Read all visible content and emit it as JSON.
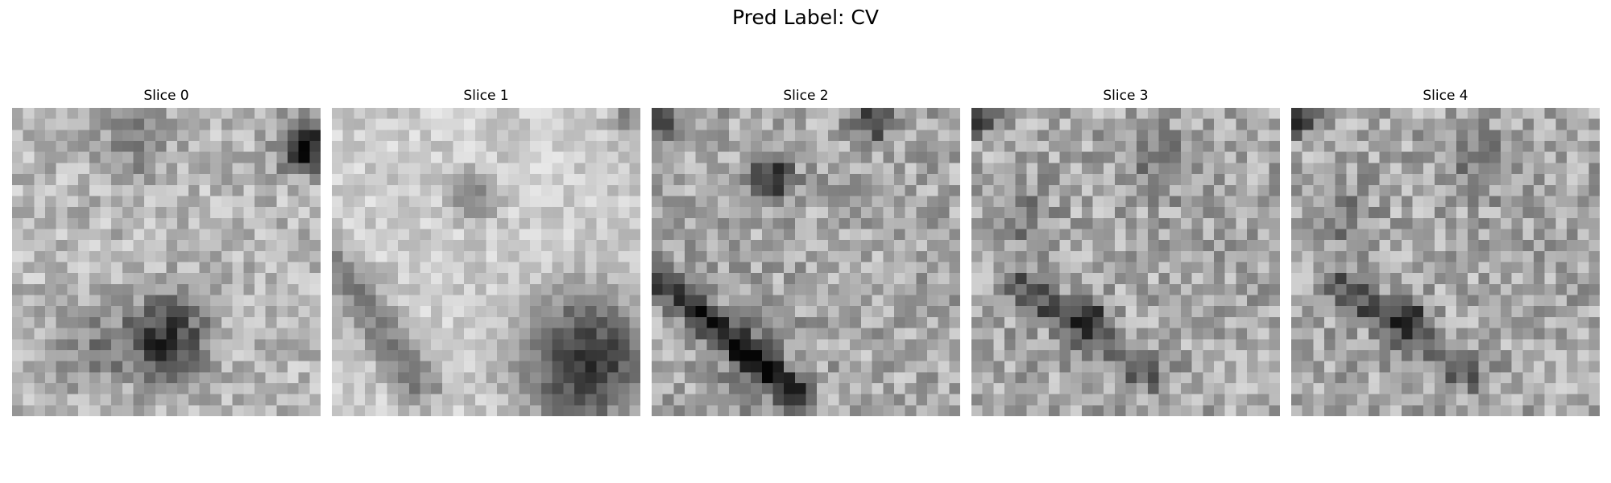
{
  "figure": {
    "title": "Pred Label: CV"
  },
  "slices": [
    {
      "title": "Slice 0"
    },
    {
      "title": "Slice 1"
    },
    {
      "title": "Slice 2"
    },
    {
      "title": "Slice 3"
    },
    {
      "title": "Slice 4"
    }
  ],
  "image_style": {
    "colormap": "grayscale",
    "grid_cells": 28,
    "axes": "off"
  }
}
